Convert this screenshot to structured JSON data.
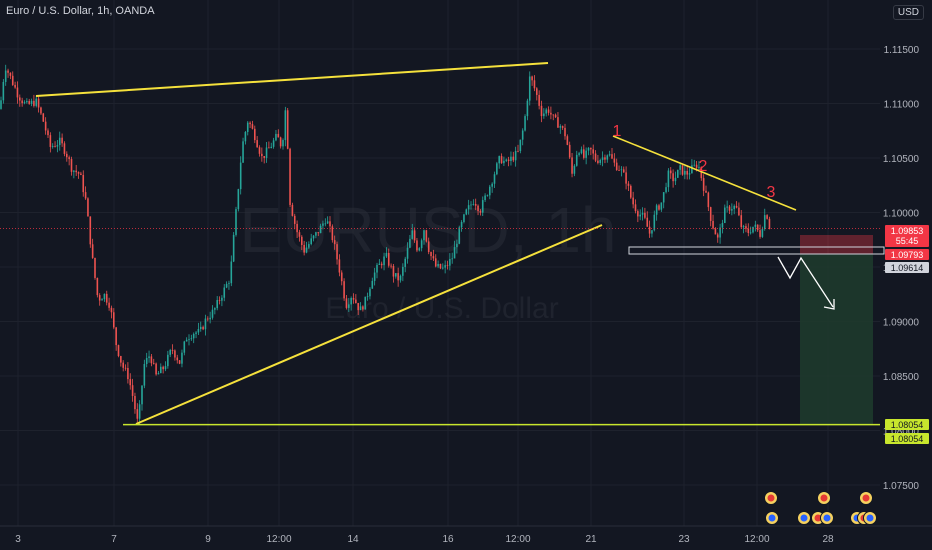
{
  "header": {
    "title": "Euro / U.S. Dollar, 1h, OANDA",
    "currency_button": "USD"
  },
  "watermark": {
    "symbol": "EURUSD, 1h",
    "name": "Euro / U.S. Dollar"
  },
  "colors": {
    "background": "#131722",
    "up": "#26a69a",
    "down": "#ef5350",
    "trendline": "#f5e13c",
    "support": "#c8e62d",
    "wave_label": "#f23645"
  },
  "chart_data": {
    "type": "candlestick",
    "title": "Euro / U.S. Dollar, 1h, OANDA",
    "ylim": [
      1.0718,
      1.1185
    ],
    "y_ticks": [
      "1.11500",
      "1.11000",
      "1.10500",
      "1.10000",
      "1.09500",
      "1.09000",
      "1.08500",
      "1.08000",
      "1.07500"
    ],
    "x_ticks": [
      "3",
      "7",
      "9",
      "12:00",
      "14",
      "16",
      "12:00",
      "21",
      "23",
      "12:00",
      "28"
    ],
    "price_path": [
      [
        0,
        1.1095
      ],
      [
        5,
        1.1135
      ],
      [
        10,
        1.1125
      ],
      [
        18,
        1.1108
      ],
      [
        26,
        1.1098
      ],
      [
        36,
        1.1102
      ],
      [
        44,
        1.1082
      ],
      [
        50,
        1.106
      ],
      [
        60,
        1.1065
      ],
      [
        66,
        1.1055
      ],
      [
        72,
        1.104
      ],
      [
        80,
        1.1035
      ],
      [
        86,
        1.101
      ],
      [
        92,
        1.096
      ],
      [
        98,
        1.092
      ],
      [
        104,
        1.0925
      ],
      [
        110,
        1.0915
      ],
      [
        116,
        1.088
      ],
      [
        122,
        1.086
      ],
      [
        128,
        1.085
      ],
      [
        132,
        1.0835
      ],
      [
        138,
        1.0805
      ],
      [
        144,
        1.086
      ],
      [
        150,
        1.087
      ],
      [
        156,
        1.085
      ],
      [
        164,
        1.0858
      ],
      [
        172,
        1.0875
      ],
      [
        180,
        1.0862
      ],
      [
        186,
        1.0885
      ],
      [
        194,
        1.089
      ],
      [
        200,
        1.089
      ],
      [
        206,
        1.0902
      ],
      [
        214,
        1.091
      ],
      [
        222,
        1.0925
      ],
      [
        230,
        1.094
      ],
      [
        236,
        1.1
      ],
      [
        242,
        1.106
      ],
      [
        248,
        1.1085
      ],
      [
        255,
        1.107
      ],
      [
        262,
        1.105
      ],
      [
        270,
        1.106
      ],
      [
        277,
        1.107
      ],
      [
        282,
        1.106
      ],
      [
        286,
        1.11
      ],
      [
        290,
        1.101
      ],
      [
        296,
        1.0985
      ],
      [
        304,
        1.0965
      ],
      [
        312,
        1.0975
      ],
      [
        320,
        1.0985
      ],
      [
        326,
        1.0995
      ],
      [
        333,
        1.0975
      ],
      [
        340,
        1.0945
      ],
      [
        346,
        1.0915
      ],
      [
        352,
        1.0925
      ],
      [
        360,
        1.091
      ],
      [
        366,
        1.092
      ],
      [
        372,
        1.094
      ],
      [
        378,
        1.095
      ],
      [
        386,
        1.096
      ],
      [
        394,
        1.0942
      ],
      [
        400,
        1.0938
      ],
      [
        406,
        1.096
      ],
      [
        412,
        1.0982
      ],
      [
        418,
        1.0965
      ],
      [
        424,
        1.0985
      ],
      [
        430,
        1.0962
      ],
      [
        436,
        1.095
      ],
      [
        444,
        1.0948
      ],
      [
        452,
        1.0958
      ],
      [
        460,
        1.0985
      ],
      [
        466,
        1.1
      ],
      [
        474,
        1.1012
      ],
      [
        480,
        1.1002
      ],
      [
        488,
        1.102
      ],
      [
        494,
        1.1035
      ],
      [
        500,
        1.105
      ],
      [
        506,
        1.1045
      ],
      [
        512,
        1.105
      ],
      [
        518,
        1.1055
      ],
      [
        524,
        1.108
      ],
      [
        530,
        1.1125
      ],
      [
        536,
        1.111
      ],
      [
        542,
        1.109
      ],
      [
        548,
        1.1095
      ],
      [
        554,
        1.1085
      ],
      [
        560,
        1.108
      ],
      [
        566,
        1.107
      ],
      [
        572,
        1.1035
      ],
      [
        578,
        1.106
      ],
      [
        584,
        1.105
      ],
      [
        590,
        1.1058
      ],
      [
        596,
        1.1048
      ],
      [
        602,
        1.105
      ],
      [
        608,
        1.1055
      ],
      [
        614,
        1.1045
      ],
      [
        620,
        1.104
      ],
      [
        626,
        1.103
      ],
      [
        632,
        1.101
      ],
      [
        638,
        1.1
      ],
      [
        644,
        1.0995
      ],
      [
        650,
        1.098
      ],
      [
        656,
        1.1002
      ],
      [
        662,
        1.101
      ],
      [
        668,
        1.1035
      ],
      [
        674,
        1.103
      ],
      [
        680,
        1.104
      ],
      [
        686,
        1.1035
      ],
      [
        692,
        1.104
      ],
      [
        698,
        1.1045
      ],
      [
        702,
        1.103
      ],
      [
        706,
        1.1015
      ],
      [
        712,
        1.099
      ],
      [
        718,
        1.0975
      ],
      [
        724,
        1.1
      ],
      [
        730,
        1.1005
      ],
      [
        736,
        1.1005
      ],
      [
        742,
        1.0985
      ],
      [
        748,
        1.0982
      ],
      [
        754,
        1.0988
      ],
      [
        760,
        1.098
      ],
      [
        766,
        1.1002
      ],
      [
        770,
        1.0985
      ]
    ],
    "horizontal_line": {
      "value": 1.08054,
      "label": "1.08054"
    },
    "price_labels": [
      {
        "value": 1.09853,
        "text": "1.09853",
        "subtext": "55:45",
        "color": "#f23645"
      },
      {
        "value": 1.09793,
        "text": "1.09793",
        "color": "#f23645"
      },
      {
        "value": 1.09614,
        "text": "1.09614",
        "color": "#d1d4dc"
      },
      {
        "value": 1.08054,
        "text": "1.08054",
        "color": "#c8e62d"
      },
      {
        "value": 1.08054,
        "text": "1.08054",
        "color": "#c8e62d"
      }
    ],
    "wave_labels": [
      "1",
      "2",
      "3"
    ]
  }
}
